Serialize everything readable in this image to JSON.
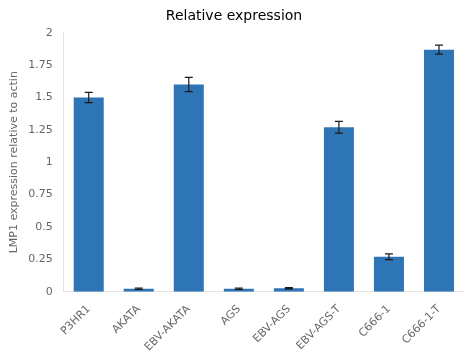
{
  "chart_data": {
    "type": "bar",
    "title": "Relative expression",
    "ylabel": "LMP1 expression relative to actin",
    "categories": [
      "P3HR1",
      "AKATA",
      "EBV-AKATA",
      "AGS",
      "EBV-AGS",
      "EBV-AGS-T",
      "C666-1",
      "C666-1-T"
    ],
    "values": [
      1.5,
      0.022,
      1.6,
      0.022,
      0.026,
      1.27,
      0.27,
      1.87
    ],
    "errors": [
      0.04,
      0.005,
      0.055,
      0.005,
      0.005,
      0.045,
      0.022,
      0.035
    ],
    "color": "#2E75B6",
    "ylim": [
      0,
      2.0
    ],
    "yticks": [
      0,
      0.25,
      0.5,
      0.75,
      1.0,
      1.25,
      1.5,
      1.75,
      2.0
    ],
    "grid": false
  }
}
